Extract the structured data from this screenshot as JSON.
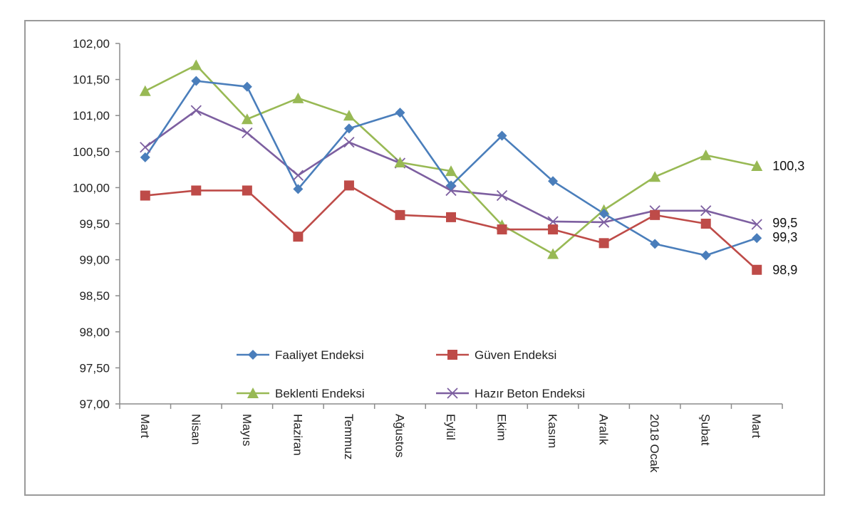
{
  "chart_data": {
    "type": "line",
    "categories": [
      "Mart",
      "Nisan",
      "Mayıs",
      "Haziran",
      "Temmuz",
      "Ağustos",
      "Eylül",
      "Ekim",
      "Kasım",
      "Aralık",
      "2018 Ocak",
      "Şubat",
      "Mart"
    ],
    "y_ticks": [
      "97,00",
      "97,50",
      "98,00",
      "98,50",
      "99,00",
      "99,50",
      "100,00",
      "100,50",
      "101,00",
      "101,50",
      "102,00"
    ],
    "ylim": [
      97,
      102
    ],
    "grid": false,
    "legend_position": "bottom-center inside plot",
    "series": [
      {
        "name": "Faaliyet Endeksi",
        "color": "#4a7ebb",
        "marker": "diamond",
        "values": [
          100.42,
          101.48,
          101.4,
          99.98,
          100.82,
          101.04,
          100.03,
          100.72,
          100.09,
          99.64,
          99.22,
          99.06,
          99.3
        ],
        "end_label": "99,3"
      },
      {
        "name": "Güven Endeksi",
        "color": "#be4b48",
        "marker": "square",
        "values": [
          99.89,
          99.96,
          99.96,
          99.32,
          100.03,
          99.62,
          99.59,
          99.42,
          99.42,
          99.23,
          99.62,
          99.5,
          98.86
        ],
        "end_label": "98,9"
      },
      {
        "name": "Beklenti Endeksi",
        "color": "#98b954",
        "marker": "triangle",
        "values": [
          101.34,
          101.7,
          100.95,
          101.24,
          101.0,
          100.35,
          100.23,
          99.48,
          99.08,
          99.69,
          100.15,
          100.45,
          100.3
        ],
        "end_label": "100,3"
      },
      {
        "name": "Hazır Beton Endeksi",
        "color": "#7d5fa0",
        "marker": "x",
        "values": [
          100.56,
          101.07,
          100.76,
          100.17,
          100.63,
          100.34,
          99.96,
          99.89,
          99.53,
          99.52,
          99.68,
          99.68,
          99.49
        ],
        "end_label": "99,5"
      }
    ]
  }
}
